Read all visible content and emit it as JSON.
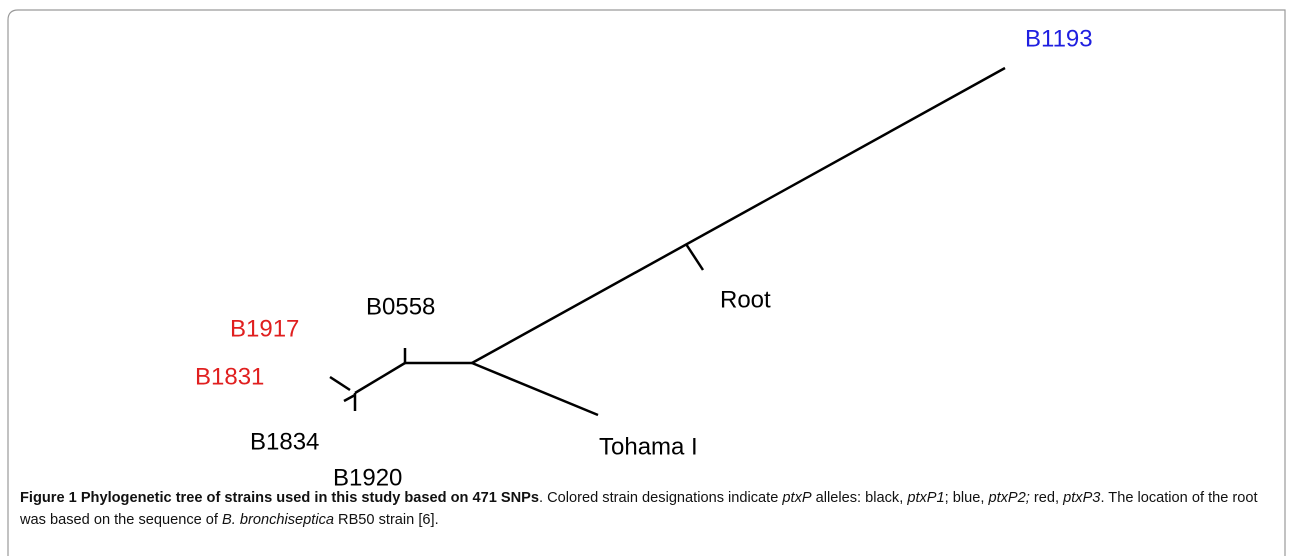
{
  "nodes": [
    {
      "label": "B1193",
      "color": "#1f1fe0"
    },
    {
      "label": "Root",
      "color": "#000000"
    },
    {
      "label": "B0558",
      "color": "#000000"
    },
    {
      "label": "B1917",
      "color": "#e01f1f"
    },
    {
      "label": "B1831",
      "color": "#e01f1f"
    },
    {
      "label": "B1834",
      "color": "#000000"
    },
    {
      "label": "B1920",
      "color": "#000000"
    },
    {
      "label": "Tohama I",
      "color": "#000000"
    }
  ],
  "caption": [
    {
      "text": "Figure 1 Phylogenetic tree of strains used in this study based on 471 SNPs",
      "style": "bold"
    },
    {
      "text": ". Colored strain designations indicate ",
      "style": "normal"
    },
    {
      "text": "ptxP",
      "style": "italic"
    },
    {
      "text": " alleles: black, ",
      "style": "normal"
    },
    {
      "text": "ptxP1",
      "style": "italic"
    },
    {
      "text": "; blue, ",
      "style": "normal"
    },
    {
      "text": "ptxP2;",
      "style": "italic"
    },
    {
      "text": " red, ",
      "style": "normal"
    },
    {
      "text": "ptxP3",
      "style": "italic"
    },
    {
      "text": ". The location of the root was based on the sequence of ",
      "style": "normal"
    },
    {
      "text": "B. bronchiseptica",
      "style": "italic"
    },
    {
      "text": " RB50 strain [6].",
      "style": "normal"
    }
  ]
}
